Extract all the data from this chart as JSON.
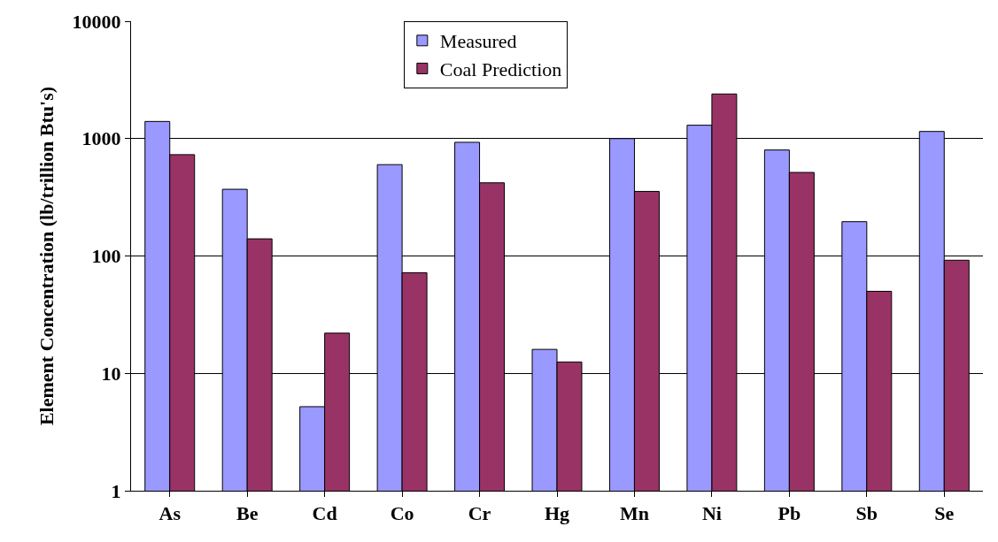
{
  "chart_data": {
    "type": "bar",
    "ylabel": "Element Concentration (lb/trillion Btu's)",
    "categories": [
      "As",
      "Be",
      "Cd",
      "Co",
      "Cr",
      "Hg",
      "Mn",
      "Ni",
      "Pb",
      "Sb",
      "Se"
    ],
    "series": [
      {
        "name": "Measured",
        "color": "#9999ff",
        "values": [
          1400,
          370,
          5.2,
          600,
          930,
          16,
          1000,
          1300,
          800,
          196,
          1150
        ]
      },
      {
        "name": "Coal Prediction",
        "color": "#993366",
        "values": [
          730,
          140,
          22,
          72,
          420,
          12.5,
          355,
          2400,
          515,
          50,
          92
        ]
      }
    ],
    "log": "y",
    "ylim": [
      1,
      10000
    ],
    "yticks": [
      1,
      10,
      100,
      1000,
      10000
    ],
    "grid": "y",
    "legend": "top"
  }
}
